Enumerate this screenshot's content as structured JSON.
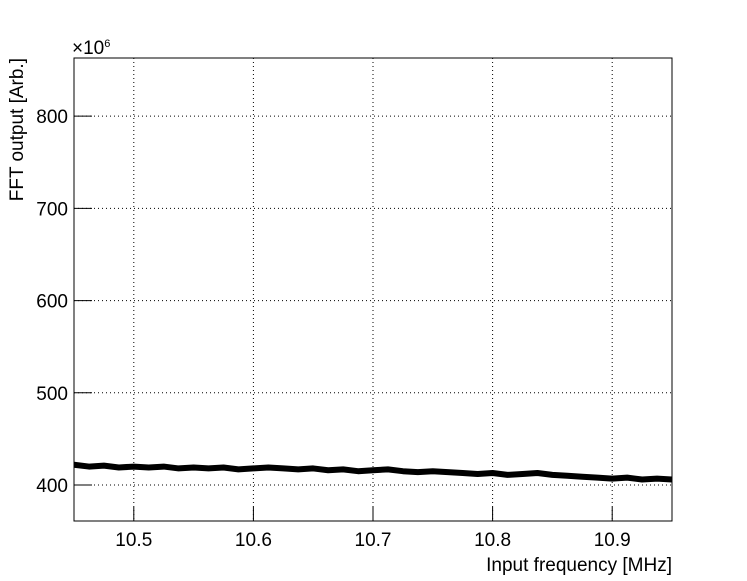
{
  "chart_data": {
    "type": "line",
    "x_label": "Input frequency [MHz]",
    "y_label": "FFT output [Arb.]",
    "y_multiplier": {
      "base": "×10",
      "exponent": "6"
    },
    "xlim": [
      10.45,
      10.95
    ],
    "ylim": [
      361,
      863
    ],
    "xticks": [
      10.5,
      10.6,
      10.7,
      10.8,
      10.9
    ],
    "yticks": [
      400,
      500,
      600,
      700,
      800
    ],
    "grid": true,
    "series": [
      {
        "color": "#000000",
        "x": [
          10.45,
          10.4625,
          10.475,
          10.4875,
          10.5,
          10.5125,
          10.525,
          10.5375,
          10.55,
          10.5625,
          10.575,
          10.5875,
          10.6,
          10.6125,
          10.625,
          10.6375,
          10.65,
          10.6625,
          10.675,
          10.6875,
          10.7,
          10.7125,
          10.725,
          10.7375,
          10.75,
          10.7625,
          10.775,
          10.7875,
          10.8,
          10.8125,
          10.825,
          10.8375,
          10.85,
          10.8625,
          10.875,
          10.8875,
          10.9,
          10.9125,
          10.925,
          10.9375,
          10.95
        ],
        "values": [
          422,
          420,
          421,
          419,
          420,
          419,
          420,
          418,
          419,
          418,
          419,
          417,
          418,
          419,
          418,
          417,
          418,
          416,
          417,
          415,
          416,
          417,
          415,
          414,
          415,
          414,
          413,
          412,
          413,
          411,
          412,
          413,
          411,
          410,
          409,
          408,
          407,
          408,
          406,
          407,
          406
        ]
      }
    ]
  }
}
